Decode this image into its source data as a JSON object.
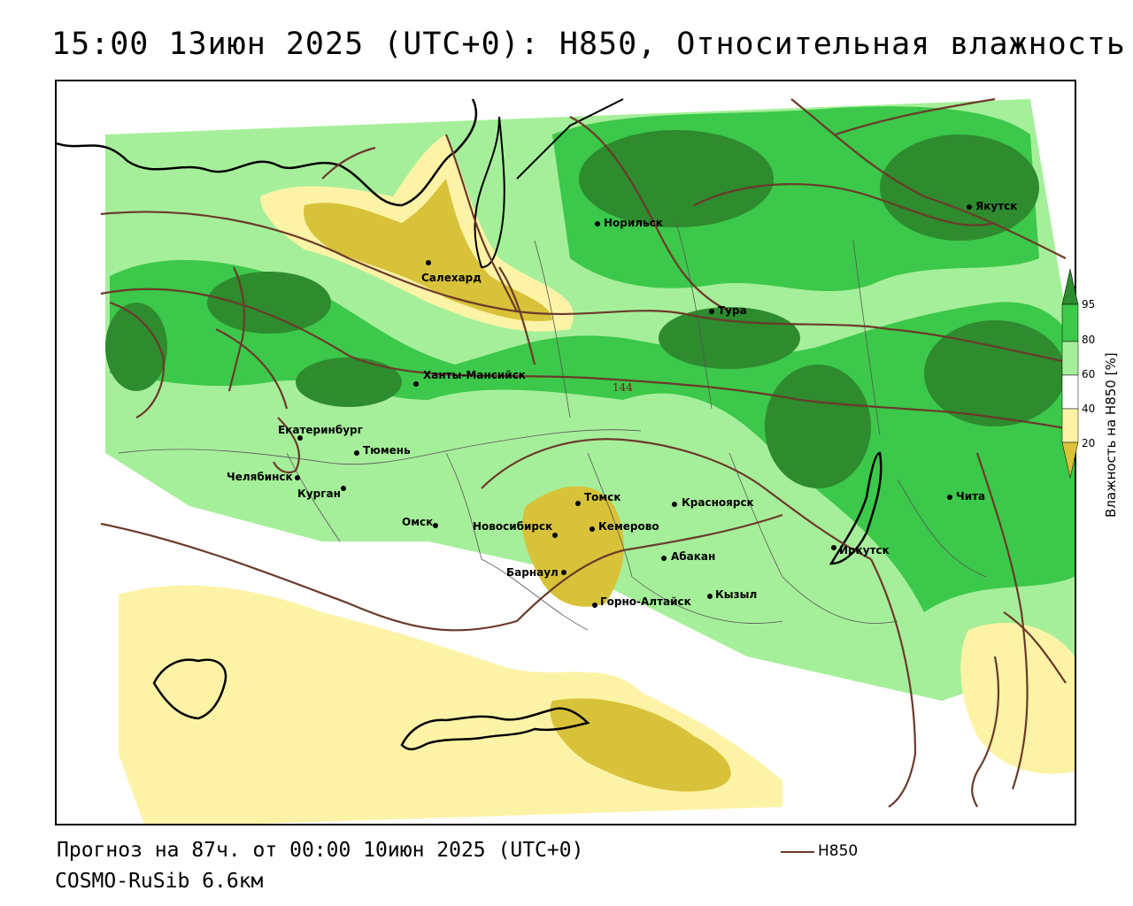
{
  "title": "15:00 13июн 2025 (UTC+0): H850, Относительная влажность",
  "forecast_text": "Прогноз на 87ч. от 00:00 10июн 2025 (UTC+0)",
  "model_text": "COSMO-RuSib 6.6км",
  "contour_legend": {
    "label": "H850",
    "color": "#6b3a2a"
  },
  "contour_label": "144",
  "colorbar": {
    "title": "Влажность на H850 [%]",
    "ticks": [
      "95",
      "80",
      "60",
      "40",
      "20"
    ],
    "colors": {
      "very_humid": "#2e8b2e",
      "humid": "#3cc84a",
      "moist": "#a6ef9a",
      "neutral": "#ffffff",
      "dry": "#fdf3a6",
      "very_dry": "#d8c23a"
    }
  },
  "cities": [
    {
      "name": "Норильск"
    },
    {
      "name": "Якутск"
    },
    {
      "name": "Салехард"
    },
    {
      "name": "Тура"
    },
    {
      "name": "Ханты-Мансийск"
    },
    {
      "name": "Екатеринбург"
    },
    {
      "name": "Тюмень"
    },
    {
      "name": "Челябинск"
    },
    {
      "name": "Курган"
    },
    {
      "name": "Омск"
    },
    {
      "name": "Новосибирск"
    },
    {
      "name": "Томск"
    },
    {
      "name": "Кемерово"
    },
    {
      "name": "Красноярск"
    },
    {
      "name": "Барнаул"
    },
    {
      "name": "Абакан"
    },
    {
      "name": "Горно-Алтайск"
    },
    {
      "name": "Кызыл"
    },
    {
      "name": "Иркутск"
    },
    {
      "name": "Чита"
    }
  ]
}
